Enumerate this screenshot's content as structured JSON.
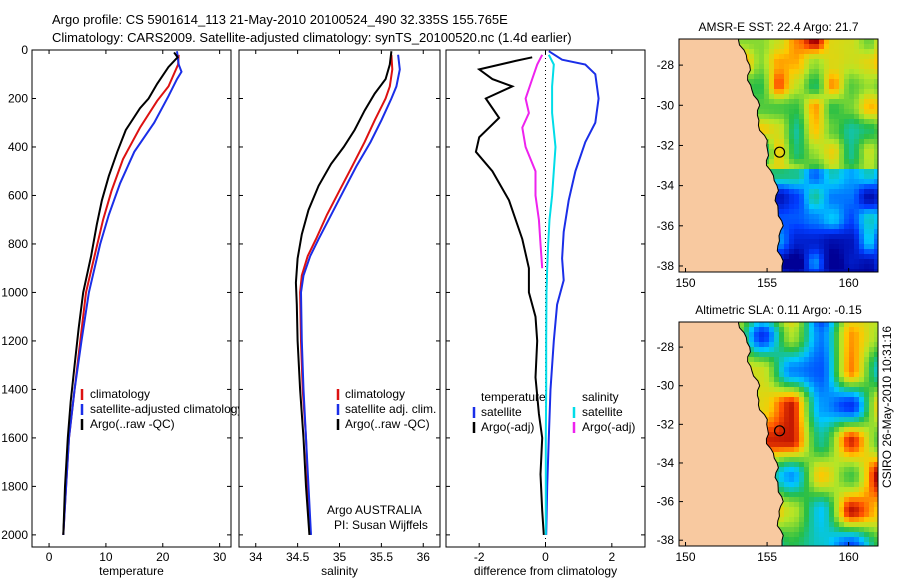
{
  "header": {
    "line1": "Argo profile: CS 5901614_113 21-May-2010 20100524_490 32.335S 155.765E",
    "line2": "Climatology: CARS2009. Satellite-adjusted climatology: synTS_20100520.nc (1.4d earlier)"
  },
  "footer": {
    "credit": "CSIRO 26-May-2010 10:31:16"
  },
  "colors": {
    "climatology": "#dd1111",
    "satellite": "#1a2ee8",
    "argo": "#000000",
    "sal_satellite": "#00dde8",
    "sal_argo": "#ee22ee",
    "land": "#f8c9a0",
    "coast": "#000000"
  },
  "chart_data": [
    {
      "type": "line",
      "id": "temperature",
      "xlabel": "temperature",
      "xlim": [
        -3,
        32
      ],
      "ylim": [
        2050,
        0
      ],
      "xticks": [
        0,
        10,
        20,
        30
      ],
      "yticks": [
        0,
        200,
        400,
        600,
        800,
        1000,
        1200,
        1400,
        1600,
        1800,
        2000
      ],
      "y_reversed": true,
      "series": [
        {
          "name": "climatology",
          "color_key": "climatology",
          "points": [
            [
              22.8,
              20
            ],
            [
              22.7,
              60
            ],
            [
              21,
              150
            ],
            [
              19,
              210
            ],
            [
              16,
              320
            ],
            [
              13,
              450
            ],
            [
              11,
              580
            ],
            [
              9.5,
              700
            ],
            [
              8,
              850
            ],
            [
              6.5,
              1000
            ],
            [
              5.5,
              1200
            ],
            [
              4.5,
              1400
            ],
            [
              3.5,
              1600
            ],
            [
              3,
              1800
            ],
            [
              2.5,
              2000
            ]
          ]
        },
        {
          "name": "satellite-adjusted climatology",
          "color_key": "satellite",
          "points": [
            [
              22.5,
              5
            ],
            [
              22.8,
              60
            ],
            [
              23.3,
              90
            ],
            [
              22.5,
              120
            ],
            [
              21,
              190
            ],
            [
              18.5,
              300
            ],
            [
              15,
              420
            ],
            [
              12.5,
              550
            ],
            [
              10.5,
              680
            ],
            [
              9,
              800
            ],
            [
              7,
              1000
            ],
            [
              5.7,
              1200
            ],
            [
              4.5,
              1400
            ],
            [
              3.5,
              1600
            ],
            [
              3,
              1800
            ],
            [
              2.5,
              2000
            ]
          ]
        },
        {
          "name": "Argo(..raw -QC)",
          "color_key": "argo",
          "points": [
            [
              22,
              10
            ],
            [
              22.6,
              30
            ],
            [
              21,
              70
            ],
            [
              19,
              140
            ],
            [
              17.5,
              200
            ],
            [
              16,
              240
            ],
            [
              13.5,
              330
            ],
            [
              12,
              420
            ],
            [
              10.5,
              520
            ],
            [
              9.3,
              620
            ],
            [
              8.4,
              720
            ],
            [
              7.4,
              850
            ],
            [
              6,
              1000
            ],
            [
              5.2,
              1150
            ],
            [
              4.5,
              1300
            ],
            [
              3.8,
              1450
            ],
            [
              3.3,
              1600
            ],
            [
              2.8,
              1800
            ],
            [
              2.5,
              2000
            ]
          ]
        }
      ],
      "legend": [
        "climatology",
        "satellite-adjusted climatology",
        "Argo(..raw -QC)"
      ]
    },
    {
      "type": "line",
      "id": "salinity",
      "xlabel": "salinity",
      "xlim": [
        33.8,
        36.2
      ],
      "ylim": [
        2050,
        0
      ],
      "xticks": [
        34,
        34.5,
        35,
        35.5,
        36
      ],
      "y_reversed": true,
      "series": [
        {
          "name": "climatology",
          "color_key": "climatology",
          "points": [
            [
              35.62,
              20
            ],
            [
              35.63,
              80
            ],
            [
              35.6,
              150
            ],
            [
              35.55,
              200
            ],
            [
              35.42,
              290
            ],
            [
              35.3,
              380
            ],
            [
              35.15,
              480
            ],
            [
              35.0,
              580
            ],
            [
              34.85,
              680
            ],
            [
              34.72,
              780
            ],
            [
              34.62,
              850
            ],
            [
              34.55,
              930
            ],
            [
              34.53,
              1000
            ],
            [
              34.54,
              1200
            ],
            [
              34.56,
              1400
            ],
            [
              34.6,
              1600
            ],
            [
              34.62,
              1800
            ],
            [
              34.65,
              2000
            ]
          ]
        },
        {
          "name": "satellite adj. clim.",
          "color_key": "satellite",
          "points": [
            [
              35.7,
              20
            ],
            [
              35.72,
              80
            ],
            [
              35.68,
              150
            ],
            [
              35.62,
              200
            ],
            [
              35.5,
              290
            ],
            [
              35.37,
              380
            ],
            [
              35.2,
              480
            ],
            [
              35.05,
              580
            ],
            [
              34.9,
              680
            ],
            [
              34.75,
              780
            ],
            [
              34.65,
              850
            ],
            [
              34.57,
              930
            ],
            [
              34.54,
              1000
            ],
            [
              34.55,
              1200
            ],
            [
              34.57,
              1400
            ],
            [
              34.6,
              1600
            ],
            [
              34.63,
              1800
            ],
            [
              34.66,
              2000
            ]
          ]
        },
        {
          "name": "Argo(..raw -QC)",
          "color_key": "argo",
          "points": [
            [
              35.62,
              5
            ],
            [
              35.6,
              60
            ],
            [
              35.55,
              120
            ],
            [
              35.42,
              180
            ],
            [
              35.3,
              250
            ],
            [
              35.18,
              330
            ],
            [
              35.05,
              400
            ],
            [
              34.9,
              470
            ],
            [
              34.75,
              560
            ],
            [
              34.63,
              660
            ],
            [
              34.55,
              760
            ],
            [
              34.5,
              860
            ],
            [
              34.48,
              960
            ],
            [
              34.49,
              1050
            ],
            [
              34.5,
              1200
            ],
            [
              34.53,
              1400
            ],
            [
              34.57,
              1600
            ],
            [
              34.6,
              1800
            ],
            [
              34.64,
              2000
            ]
          ]
        }
      ],
      "legend": [
        "climatology",
        "satellite adj. clim.",
        "Argo(..raw -QC)"
      ],
      "annotation": [
        "Argo AUSTRALIA",
        "PI: Susan Wijffels"
      ]
    },
    {
      "type": "line",
      "id": "difference",
      "xlabel": "difference from climatology",
      "xlim": [
        -3,
        3
      ],
      "ylim": [
        2050,
        0
      ],
      "xticks": [
        -2,
        0,
        2
      ],
      "y_reversed": true,
      "zero_line": true,
      "series": [
        {
          "name": "temperature satellite",
          "color_key": "satellite",
          "points": [
            [
              0.1,
              5
            ],
            [
              0.5,
              40
            ],
            [
              1.2,
              60
            ],
            [
              1.5,
              100
            ],
            [
              1.6,
              200
            ],
            [
              1.5,
              300
            ],
            [
              1.2,
              380
            ],
            [
              0.9,
              500
            ],
            [
              0.7,
              620
            ],
            [
              0.55,
              750
            ],
            [
              0.5,
              860
            ],
            [
              0.55,
              950
            ],
            [
              0.35,
              1050
            ],
            [
              0.25,
              1200
            ],
            [
              0.15,
              1400
            ],
            [
              0.1,
              1600
            ],
            [
              0.05,
              1800
            ],
            [
              0.02,
              2000
            ]
          ]
        },
        {
          "name": "temperature Argo(-adj)",
          "color_key": "argo",
          "points": [
            [
              -0.4,
              30
            ],
            [
              -0.9,
              45
            ],
            [
              -2.0,
              80
            ],
            [
              -1.6,
              120
            ],
            [
              -1.0,
              150
            ],
            [
              -1.8,
              200
            ],
            [
              -1.4,
              280
            ],
            [
              -2.0,
              360
            ],
            [
              -2.1,
              420
            ],
            [
              -1.6,
              500
            ],
            [
              -1.1,
              620
            ],
            [
              -0.7,
              780
            ],
            [
              -0.5,
              900
            ],
            [
              -0.5,
              1000
            ],
            [
              -0.3,
              1100
            ],
            [
              -0.25,
              1200
            ],
            [
              -0.3,
              1350
            ],
            [
              -0.2,
              1500
            ],
            [
              -0.1,
              1600
            ],
            [
              -0.15,
              1750
            ],
            [
              -0.1,
              1900
            ],
            [
              -0.05,
              2000
            ]
          ]
        },
        {
          "name": "salinity satellite",
          "color_key": "sal_satellite",
          "points": [
            [
              0.1,
              20
            ],
            [
              0.25,
              60
            ],
            [
              0.2,
              150
            ],
            [
              0.2,
              260
            ],
            [
              0.3,
              400
            ],
            [
              0.25,
              500
            ],
            [
              0.2,
              600
            ],
            [
              0.12,
              700
            ],
            [
              0.08,
              800
            ],
            [
              0.05,
              900
            ],
            [
              0.03,
              1000
            ],
            [
              0.02,
              1200
            ],
            [
              0.02,
              1400
            ],
            [
              0.01,
              1600
            ],
            [
              0.01,
              1800
            ],
            [
              0.01,
              2000
            ]
          ]
        },
        {
          "name": "salinity Argo(-adj)",
          "color_key": "sal_argo",
          "points": [
            [
              -0.1,
              20
            ],
            [
              -0.25,
              60
            ],
            [
              -0.4,
              120
            ],
            [
              -0.6,
              200
            ],
            [
              -0.5,
              260
            ],
            [
              -0.7,
              320
            ],
            [
              -0.6,
              400
            ],
            [
              -0.3,
              500
            ],
            [
              -0.3,
              600
            ],
            [
              -0.2,
              700
            ],
            [
              -0.15,
              800
            ],
            [
              -0.1,
              900
            ]
          ]
        }
      ],
      "legend_left": {
        "title": "temperature",
        "items": [
          "satellite",
          "Argo(-adj)"
        ]
      },
      "legend_right": {
        "title": "salinity",
        "items": [
          "satellite",
          "Argo(-adj)"
        ]
      }
    },
    {
      "type": "heatmap",
      "id": "sst_map",
      "title": "AMSR-E SST: 22.4  Argo: 21.7",
      "xlim": [
        149.6,
        161.8
      ],
      "ylim": [
        -38.3,
        -26.7
      ],
      "xticks": [
        150,
        155,
        160
      ],
      "yticks": [
        -28,
        -30,
        -32,
        -34,
        -36,
        -38
      ],
      "float_position": [
        155.765,
        -32.335
      ]
    },
    {
      "type": "heatmap",
      "id": "sla_map",
      "title": "Altimetric SLA: 0.11  Argo: -0.15",
      "xlim": [
        149.6,
        161.8
      ],
      "ylim": [
        -38.3,
        -26.7
      ],
      "xticks": [
        150,
        155,
        160
      ],
      "yticks": [
        -28,
        -30,
        -32,
        -34,
        -36,
        -38
      ],
      "float_position": [
        155.765,
        -32.335
      ]
    }
  ]
}
